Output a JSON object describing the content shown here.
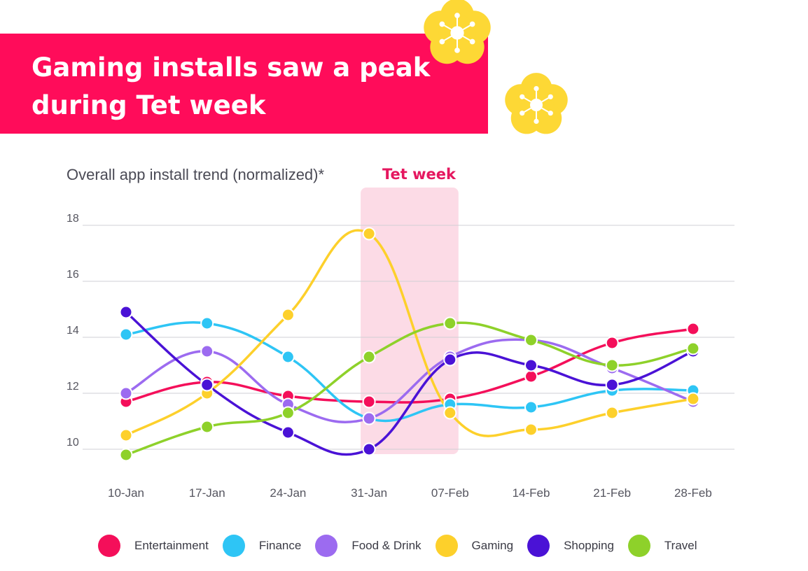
{
  "header": {
    "title_line1": "Gaming installs saw a peak",
    "title_line2": "during Tet week"
  },
  "colors": {
    "banner": "#ff0c5a",
    "flower": "#fdd835",
    "highlight_band": "#fcdbe6",
    "highlight_label": "#e5175f"
  },
  "decorations": [
    "flower-icon",
    "flower-icon"
  ],
  "chart_data": {
    "type": "line",
    "title": "Overall app install trend (normalized)*",
    "highlight": {
      "label": "Tet week",
      "from_category": "31-Jan",
      "to_category": "07-Feb"
    },
    "categories": [
      "10-Jan",
      "17-Jan",
      "24-Jan",
      "31-Jan",
      "07-Feb",
      "14-Feb",
      "21-Feb",
      "28-Feb"
    ],
    "y_ticks": [
      10,
      12,
      14,
      16,
      18
    ],
    "ylim": [
      10,
      18
    ],
    "grid": true,
    "legend_position": "bottom",
    "series": [
      {
        "name": "Entertainment",
        "color": "#f40f5a",
        "values": [
          11.7,
          12.4,
          11.9,
          11.7,
          11.8,
          12.6,
          13.8,
          14.3
        ]
      },
      {
        "name": "Finance",
        "color": "#2ec5f5",
        "values": [
          14.1,
          14.5,
          13.3,
          11.1,
          11.6,
          11.5,
          12.1,
          12.1
        ]
      },
      {
        "name": "Food & Drink",
        "color": "#9c6bf0",
        "values": [
          12.0,
          13.5,
          11.6,
          11.1,
          13.3,
          13.9,
          12.9,
          11.7
        ]
      },
      {
        "name": "Gaming",
        "color": "#fdd02b",
        "values": [
          10.5,
          12.0,
          14.8,
          17.7,
          11.3,
          10.7,
          11.3,
          11.8
        ]
      },
      {
        "name": "Shopping",
        "color": "#4a12d6",
        "values": [
          14.9,
          12.3,
          10.6,
          10.0,
          13.2,
          13.0,
          12.3,
          13.5
        ]
      },
      {
        "name": "Travel",
        "color": "#8ed12a",
        "values": [
          9.8,
          10.8,
          11.3,
          13.3,
          14.5,
          13.9,
          13.0,
          13.6
        ]
      }
    ]
  }
}
